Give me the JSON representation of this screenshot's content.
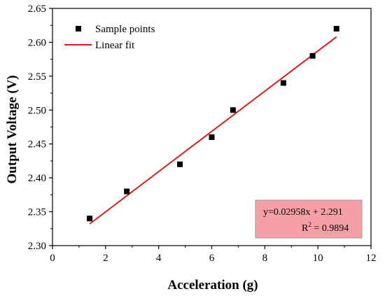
{
  "chart_data": {
    "type": "scatter",
    "title": "",
    "xlabel": "Acceleration (g)",
    "ylabel": "Output Voltage (V)",
    "xlim": [
      0,
      12
    ],
    "ylim": [
      2.3,
      2.65
    ],
    "xticks": [
      "0",
      "2",
      "4",
      "6",
      "8",
      "10",
      "12"
    ],
    "yticks": [
      "2.30",
      "2.35",
      "2.40",
      "2.45",
      "2.50",
      "2.55",
      "2.60",
      "2.65"
    ],
    "grid": false,
    "legend_position": "top-left",
    "series": [
      {
        "name": "Sample points",
        "kind": "scatter",
        "marker": "square",
        "color": "#000000",
        "x": [
          1.4,
          2.8,
          4.8,
          6.0,
          6.8,
          8.7,
          9.8,
          10.7
        ],
        "y": [
          2.34,
          2.38,
          2.42,
          2.46,
          2.5,
          2.54,
          2.58,
          2.62
        ]
      },
      {
        "name": "Linear fit",
        "kind": "line",
        "color": "#e31a1c",
        "x": [
          1.4,
          10.7
        ],
        "y": [
          2.332,
          2.608
        ]
      }
    ],
    "annotation": {
      "equation": "y=0.02958x + 2.291",
      "r2_prefix": "R",
      "r2_sup": "2",
      "r2_value": " = 0.9894",
      "background": "#f4a0a4",
      "border": "#9a9a9a"
    }
  }
}
